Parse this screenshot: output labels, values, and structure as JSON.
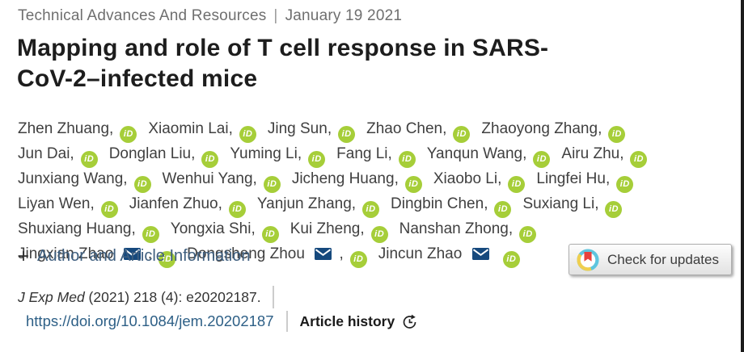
{
  "meta": {
    "category": "Technical Advances And Resources",
    "separator": "|",
    "date": "January 19 2021"
  },
  "title": {
    "lines": [
      "Mapping and role of T cell response in SARS-",
      "CoV-2–infected mice"
    ]
  },
  "authors": [
    {
      "name": "Zhen Zhuang",
      "orcid": true,
      "email": false
    },
    {
      "name": "Xiaomin Lai",
      "orcid": true,
      "email": false
    },
    {
      "name": "Jing Sun",
      "orcid": true,
      "email": false
    },
    {
      "name": "Zhao Chen",
      "orcid": true,
      "email": false
    },
    {
      "name": "Zhaoyong Zhang",
      "orcid": true,
      "email": false
    },
    {
      "name": "Jun Dai",
      "orcid": true,
      "email": false
    },
    {
      "name": "Donglan Liu",
      "orcid": true,
      "email": false
    },
    {
      "name": "Yuming Li",
      "orcid": true,
      "email": false
    },
    {
      "name": "Fang Li",
      "orcid": true,
      "email": false
    },
    {
      "name": "Yanqun Wang",
      "orcid": true,
      "email": false
    },
    {
      "name": "Airu Zhu",
      "orcid": true,
      "email": false
    },
    {
      "name": "Junxiang Wang",
      "orcid": true,
      "email": false
    },
    {
      "name": "Wenhui Yang",
      "orcid": true,
      "email": false
    },
    {
      "name": "Jicheng Huang",
      "orcid": true,
      "email": false
    },
    {
      "name": "Xiaobo Li",
      "orcid": true,
      "email": false
    },
    {
      "name": "Lingfei Hu",
      "orcid": true,
      "email": false
    },
    {
      "name": "Liyan Wen",
      "orcid": true,
      "email": false
    },
    {
      "name": "Jianfen Zhuo",
      "orcid": true,
      "email": false
    },
    {
      "name": "Yanjun Zhang",
      "orcid": true,
      "email": false
    },
    {
      "name": "Dingbin Chen",
      "orcid": true,
      "email": false
    },
    {
      "name": "Suxiang Li",
      "orcid": true,
      "email": false
    },
    {
      "name": "Shuxiang Huang",
      "orcid": true,
      "email": false
    },
    {
      "name": "Yongxia Shi",
      "orcid": true,
      "email": false
    },
    {
      "name": "Kui Zheng",
      "orcid": true,
      "email": false
    },
    {
      "name": "Nanshan Zhong",
      "orcid": true,
      "email": false
    },
    {
      "name": "Jingxian Zhao",
      "orcid": true,
      "email": true
    },
    {
      "name": "Dongsheng Zhou",
      "orcid": true,
      "email": true
    },
    {
      "name": "Jincun Zhao",
      "orcid": true,
      "email": true
    }
  ],
  "author_info": {
    "plus": "+",
    "label": "Author and Article Information"
  },
  "crossmark": {
    "label": "Check for updates"
  },
  "citation": {
    "journal": "J Exp Med",
    "details": " (2021) 218 (4): e20202187."
  },
  "doi": {
    "url": "https://doi.org/10.1084/jem.20202187"
  },
  "history": {
    "label": "Article history"
  },
  "icons": {
    "orcid_text": "iD"
  },
  "colors": {
    "orcid_green": "#A6CE39",
    "envelope_navy": "#16497D",
    "link_blue": "#2D5F86",
    "author_info_blue": "#3E5E7E",
    "crossmark_red": "#E8413C",
    "crossmark_cyan": "#5FC5DE",
    "crossmark_yellow": "#F0CF4F",
    "meta_gray": "#6F6F6F"
  }
}
